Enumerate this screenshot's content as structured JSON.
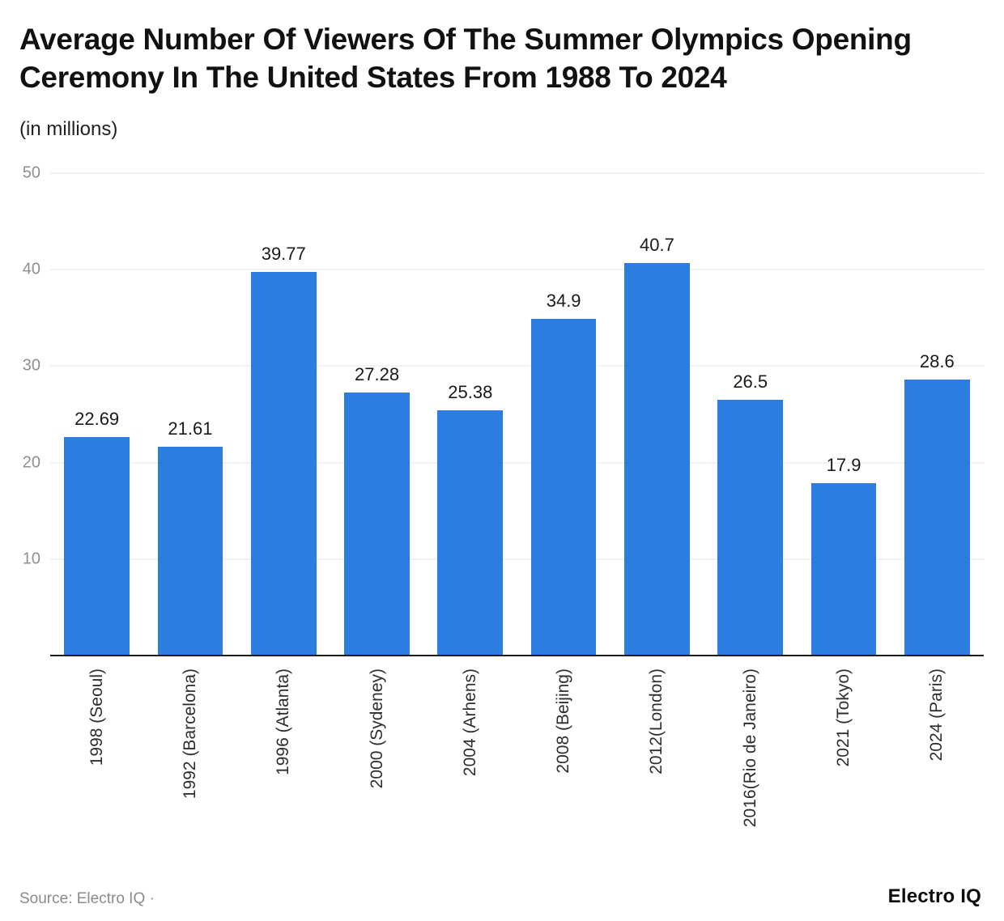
{
  "header": {
    "title": "Average Number Of Viewers Of The Summer Olympics Opening Ceremony In The United States From 1988 To 2024",
    "subtitle": "(in millions)"
  },
  "chart_data": {
    "type": "bar",
    "title": "Average Number Of Viewers Of The Summer Olympics Opening Ceremony In The United States From 1988 To 2024",
    "ylabel": "(in millions)",
    "categories": [
      "1998 (Seoul)",
      "1992 (Barcelona)",
      "1996 (Atlanta)",
      "2000 (Sydeney)",
      "2004 (Arhens)",
      "2008 (Beijing)",
      "2012(London)",
      "2016(Rio de Janeiro)",
      "2021 (Tokyo)",
      "2024 (Paris)"
    ],
    "values": [
      22.69,
      21.61,
      39.77,
      27.28,
      25.38,
      34.9,
      40.7,
      26.5,
      17.9,
      28.6
    ],
    "value_labels": [
      "22.69",
      "21.61",
      "39.77",
      "27.28",
      "25.38",
      "34.9",
      "40.7",
      "26.5",
      "17.9",
      "28.6"
    ],
    "ylim": [
      0,
      50
    ],
    "yticks": [
      10,
      20,
      30,
      40,
      50
    ],
    "grid": true,
    "legend": "none",
    "bar_color": "#2b7de1"
  },
  "footer": {
    "source": "Source: Electro IQ ·",
    "logo": "Electro IQ"
  }
}
